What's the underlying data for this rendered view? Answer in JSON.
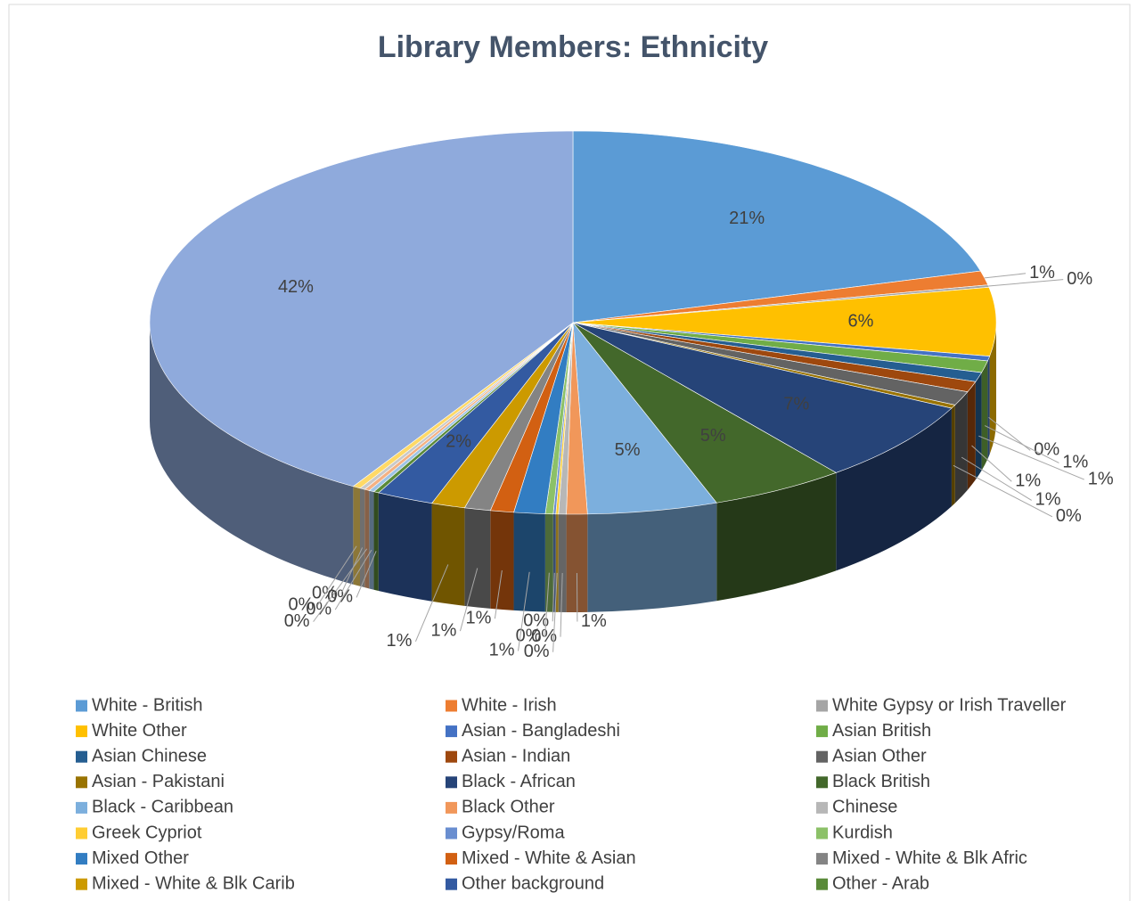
{
  "chart_data": {
    "type": "pie",
    "title": "Library Members: Ethnicity",
    "categories": [
      "White - British",
      "White - Irish",
      "White Gypsy or Irish Traveller",
      "White Other",
      "Asian - Bangladeshi",
      "Asian British",
      "Asian Chinese",
      "Asian - Indian",
      "Asian Other",
      "Asian - Pakistani",
      "Black - African",
      "Black British",
      "Black - Caribbean",
      "Black Other",
      "Chinese",
      "Greek Cypriot",
      "Gypsy/Roma",
      "Kurdish",
      "Mixed Other",
      "Mixed - White & Asian",
      "Mixed - White & Blk Afric",
      "Mixed - White & Blk Carib",
      "Other background",
      "Other - Arab",
      null,
      null,
      null,
      null,
      null
    ],
    "values": [
      20.8,
      1.2,
      0.2,
      5.8,
      0.4,
      1.0,
      0.8,
      0.9,
      1.2,
      0.3,
      7.0,
      5.2,
      5.0,
      0.8,
      0.3,
      0.1,
      0.1,
      0.3,
      1.2,
      0.9,
      1.0,
      1.3,
      2.2,
      0.2,
      0.2,
      0.2,
      0.2,
      0.3,
      41.6
    ],
    "value_labels": [
      "21%",
      "1%",
      "0%",
      "6%",
      "0%",
      "1%",
      "1%",
      "1%",
      "1%",
      "0%",
      "7%",
      "5%",
      "5%",
      "1%",
      "0%",
      "0%",
      "0%",
      "0%",
      "1%",
      "1%",
      "1%",
      "1%",
      "2%",
      "0%",
      "0%",
      "0%",
      "0%",
      "0%",
      "42%"
    ],
    "colors": [
      "#5b9bd5",
      "#ed7d31",
      "#a5a5a5",
      "#ffc000",
      "#4472c4",
      "#70ad47",
      "#255e91",
      "#9e480e",
      "#636363",
      "#997300",
      "#264478",
      "#43682b",
      "#7cafdd",
      "#f1975a",
      "#b7b7b7",
      "#ffcd33",
      "#698ed0",
      "#8cc168",
      "#327dc2",
      "#d26012",
      "#848484",
      "#cc9a00",
      "#335aa1",
      "#5a8a39",
      "#9dc3e6",
      "#f4b183",
      "#c9c9c9",
      "#ffd966",
      "#8faadc"
    ]
  }
}
